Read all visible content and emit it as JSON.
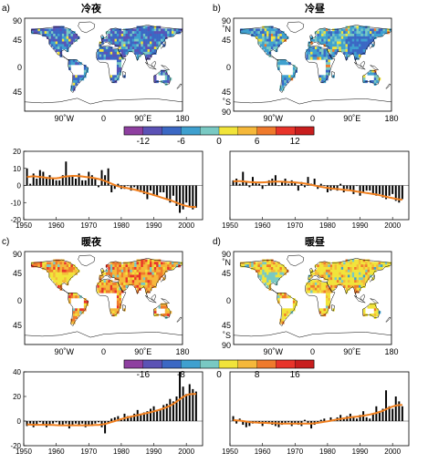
{
  "colors": {
    "palette_cold": [
      "#8e3fa0",
      "#5b52b5",
      "#3b68c4",
      "#3fa0cf",
      "#79c9c3",
      "#f1e43a",
      "#f5b83a",
      "#ef7a2c",
      "#e8342a",
      "#c81e1e"
    ],
    "ocean": "#ffffff",
    "land_outline": "#000000",
    "trend_line": "#f07f1e",
    "bar": "#000000"
  },
  "panels": [
    {
      "letter": "a)",
      "title": "冷夜",
      "map_ticks_x": [
        "90˚W",
        "0",
        "90˚E",
        "180"
      ],
      "map_ticks_y": [
        "90",
        "45",
        "0",
        "45",
        ""
      ],
      "dominant_color_index": 2
    },
    {
      "letter": "b)",
      "title": "冷昼",
      "map_ticks_x": [
        "90˚W",
        "0",
        "90˚E",
        "180"
      ],
      "map_ticks_y": [
        "90",
        "˚N",
        "45",
        "0",
        "45",
        "˚S",
        "90"
      ],
      "dominant_color_index": 3
    },
    {
      "letter": "c)",
      "title": "暖夜",
      "map_ticks_x": [
        "90˚W",
        "0",
        "90˚E",
        "180"
      ],
      "map_ticks_y": [
        "90",
        "45",
        "0",
        "45",
        ""
      ],
      "dominant_color_index": 6
    },
    {
      "letter": "d)",
      "title": "暖昼",
      "map_ticks_x": [
        "90˚W",
        "0",
        "90˚E",
        "180"
      ],
      "map_ticks_y": [
        "90",
        "˚N",
        "45",
        "0",
        "45",
        "˚S",
        "90"
      ],
      "dominant_color_index": 5
    }
  ],
  "colorbars": [
    {
      "labels": [
        "-12",
        "-6",
        "0",
        "6",
        "12"
      ]
    },
    {
      "labels": [
        "-16",
        "-8",
        "0",
        "8",
        "16"
      ]
    }
  ],
  "chart_data": [
    {
      "type": "bar",
      "panel": "a",
      "x": [
        1951,
        1952,
        1953,
        1954,
        1955,
        1956,
        1957,
        1958,
        1959,
        1960,
        1961,
        1962,
        1963,
        1964,
        1965,
        1966,
        1967,
        1968,
        1969,
        1970,
        1971,
        1972,
        1973,
        1974,
        1975,
        1976,
        1977,
        1978,
        1979,
        1980,
        1981,
        1982,
        1983,
        1984,
        1985,
        1986,
        1987,
        1988,
        1989,
        1990,
        1991,
        1992,
        1993,
        1994,
        1995,
        1996,
        1997,
        1998,
        1999,
        2000,
        2001,
        2002,
        2003
      ],
      "values": [
        10,
        1,
        7,
        4,
        9,
        8,
        5,
        6,
        4,
        3,
        3,
        6,
        14,
        5,
        6,
        4,
        7,
        3,
        3,
        8,
        6,
        4,
        -1,
        9,
        6,
        10,
        -4,
        -2,
        1,
        -2,
        -2,
        0,
        -3,
        -1,
        -3,
        -4,
        -5,
        -8,
        -3,
        -6,
        -6,
        -4,
        -4,
        -8,
        -10,
        -6,
        -12,
        -16,
        -14,
        -10,
        -12,
        -14,
        -13
      ],
      "trend": [
        5,
        5.2,
        5.4,
        5.2,
        5,
        4.8,
        4.5,
        4.3,
        4.2,
        4.2,
        4.5,
        5,
        5.3,
        5.5,
        5.6,
        5.6,
        5.5,
        5.3,
        5,
        4.8,
        4.6,
        4.2,
        3.8,
        3.3,
        2.6,
        1.8,
        1,
        0.2,
        -0.4,
        -0.9,
        -1.3,
        -1.6,
        -2,
        -2.4,
        -2.9,
        -3.4,
        -3.9,
        -4.5,
        -5,
        -5.6,
        -6.2,
        -6.8,
        -7.4,
        -8,
        -8.6,
        -9.3,
        -10,
        -10.8,
        -11.5,
        -12,
        -12.4,
        -12.6,
        -12.6
      ],
      "xticks": [
        "1950",
        "1960",
        "1970",
        "1980",
        "1990",
        "2000"
      ],
      "yticks": [
        "20",
        "10",
        "0",
        "-10",
        "-20"
      ],
      "ylim": [
        -20,
        20
      ],
      "xlim": [
        1950,
        2005
      ]
    },
    {
      "type": "bar",
      "panel": "b",
      "x": [
        1951,
        1952,
        1953,
        1954,
        1955,
        1956,
        1957,
        1958,
        1959,
        1960,
        1961,
        1962,
        1963,
        1964,
        1965,
        1966,
        1967,
        1968,
        1969,
        1970,
        1971,
        1972,
        1973,
        1974,
        1975,
        1976,
        1977,
        1978,
        1979,
        1980,
        1981,
        1982,
        1983,
        1984,
        1985,
        1986,
        1987,
        1988,
        1989,
        1990,
        1991,
        1992,
        1993,
        1994,
        1995,
        1996,
        1997,
        1998,
        1999,
        2000,
        2001,
        2002,
        2003
      ],
      "values": [
        3,
        4,
        1,
        8,
        2,
        -1,
        5,
        2,
        1,
        -2,
        0,
        3,
        4,
        6,
        0,
        2,
        4,
        1,
        3,
        2,
        -3,
        2,
        -1,
        5,
        1,
        4,
        -2,
        1,
        0,
        -4,
        -3,
        -2,
        -3,
        1,
        -4,
        -2,
        -3,
        -5,
        0,
        -6,
        -4,
        -3,
        -3,
        -5,
        -6,
        -5,
        -7,
        -8,
        -6,
        -5,
        -9,
        -10,
        -8
      ],
      "trend": [
        2.4,
        2.5,
        2.5,
        2.4,
        2.2,
        2,
        1.9,
        1.8,
        1.8,
        1.8,
        1.9,
        2.1,
        2.2,
        2.3,
        2.3,
        2.2,
        2.1,
        2,
        1.9,
        1.8,
        1.6,
        1.4,
        1.1,
        0.8,
        0.4,
        0,
        -0.4,
        -0.8,
        -1.1,
        -1.4,
        -1.7,
        -1.9,
        -2.1,
        -2.3,
        -2.5,
        -2.7,
        -2.9,
        -3.2,
        -3.5,
        -3.8,
        -4.1,
        -4.4,
        -4.7,
        -5,
        -5.3,
        -5.7,
        -6.1,
        -6.6,
        -7,
        -7.4,
        -7.8,
        -8.1,
        -8.3
      ],
      "xticks": [
        "1950",
        "1960",
        "1970",
        "1980",
        "1990",
        "2000"
      ],
      "yticks": [],
      "ylim": [
        -20,
        20
      ],
      "xlim": [
        1950,
        2005
      ]
    },
    {
      "type": "bar",
      "panel": "c",
      "x": [
        1951,
        1952,
        1953,
        1954,
        1955,
        1956,
        1957,
        1958,
        1959,
        1960,
        1961,
        1962,
        1963,
        1964,
        1965,
        1966,
        1967,
        1968,
        1969,
        1970,
        1971,
        1972,
        1973,
        1974,
        1975,
        1976,
        1977,
        1978,
        1979,
        1980,
        1981,
        1982,
        1983,
        1984,
        1985,
        1986,
        1987,
        1988,
        1989,
        1990,
        1991,
        1992,
        1993,
        1994,
        1995,
        1996,
        1997,
        1998,
        1999,
        2000,
        2001,
        2002,
        2003
      ],
      "values": [
        -4,
        -2,
        -5,
        -3,
        -1,
        -3,
        -5,
        -3,
        -2,
        -1,
        -4,
        -3,
        -2,
        -6,
        -4,
        -2,
        -3,
        -2,
        -5,
        -3,
        -4,
        -2,
        -1,
        -5,
        -10,
        -2,
        2,
        3,
        4,
        2,
        6,
        4,
        3,
        6,
        9,
        5,
        7,
        8,
        10,
        12,
        8,
        9,
        13,
        14,
        18,
        16,
        20,
        40,
        28,
        22,
        30,
        26,
        24
      ],
      "trend": [
        -2.8,
        -2.9,
        -3,
        -3,
        -3,
        -3,
        -3,
        -3.1,
        -3.2,
        -3.3,
        -3.4,
        -3.4,
        -3.4,
        -3.4,
        -3.4,
        -3.4,
        -3.4,
        -3.4,
        -3.4,
        -3.4,
        -3.3,
        -3.2,
        -3.1,
        -2.8,
        -2.3,
        -1.6,
        -0.8,
        0,
        0.8,
        1.6,
        2.4,
        3,
        3.6,
        4.2,
        4.8,
        5.4,
        6,
        6.6,
        7.2,
        7.9,
        8.6,
        9.4,
        10.3,
        11.3,
        12.5,
        14,
        15.8,
        17.8,
        19.6,
        21,
        21.8,
        22,
        22
      ],
      "xticks": [
        "1950",
        "1960",
        "1970",
        "1980",
        "1990",
        "2000"
      ],
      "yticks": [
        "40",
        "20",
        "0",
        "-20"
      ],
      "ylim": [
        -20,
        40
      ],
      "xlim": [
        1950,
        2005
      ]
    },
    {
      "type": "bar",
      "panel": "d",
      "x": [
        1951,
        1952,
        1953,
        1954,
        1955,
        1956,
        1957,
        1958,
        1959,
        1960,
        1961,
        1962,
        1963,
        1964,
        1965,
        1966,
        1967,
        1968,
        1969,
        1970,
        1971,
        1972,
        1973,
        1974,
        1975,
        1976,
        1977,
        1978,
        1979,
        1980,
        1981,
        1982,
        1983,
        1984,
        1985,
        1986,
        1987,
        1988,
        1989,
        1990,
        1991,
        1992,
        1993,
        1994,
        1995,
        1996,
        1997,
        1998,
        1999,
        2000,
        2001,
        2002,
        2003
      ],
      "values": [
        4,
        -2,
        2,
        -3,
        -5,
        -4,
        -2,
        -1,
        -2,
        -4,
        -1,
        -2,
        -3,
        -4,
        -5,
        -3,
        -2,
        -1,
        -4,
        -2,
        -3,
        -4,
        1,
        -2,
        -6,
        -3,
        -2,
        1,
        2,
        0,
        3,
        1,
        3,
        5,
        2,
        4,
        6,
        4,
        2,
        5,
        8,
        3,
        2,
        6,
        12,
        8,
        10,
        25,
        12,
        10,
        20,
        16,
        12
      ],
      "trend": [
        0.8,
        0.6,
        0.4,
        0,
        -0.4,
        -0.8,
        -1,
        -1.2,
        -1.3,
        -1.4,
        -1.5,
        -1.6,
        -1.7,
        -1.8,
        -1.9,
        -2,
        -2,
        -2,
        -2,
        -2,
        -2,
        -2,
        -2,
        -2,
        -2,
        -1.8,
        -1.4,
        -1,
        -0.6,
        -0.2,
        0.3,
        0.8,
        1.3,
        1.8,
        2.2,
        2.6,
        3,
        3.3,
        3.6,
        4,
        4.4,
        4.8,
        5.3,
        5.9,
        6.6,
        7.4,
        8.4,
        9.6,
        10.8,
        11.8,
        12.6,
        13,
        13.2
      ],
      "xticks": [
        "1950",
        "1960",
        "1970",
        "1980",
        "1990",
        "2000"
      ],
      "yticks": [],
      "ylim": [
        -20,
        40
      ],
      "xlim": [
        1950,
        2005
      ]
    }
  ]
}
